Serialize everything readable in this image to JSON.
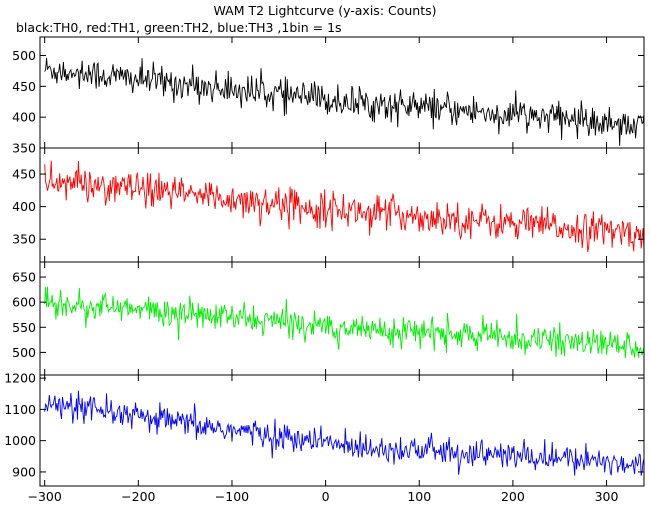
{
  "title": "WAM T2 Lightcurve (y-axis: Counts)",
  "subtitle": "black:TH0, red:TH1, green:TH2, blue:TH3 ,1bin = 1s",
  "chart_data": {
    "type": "line",
    "x_ticks": [
      -300,
      -200,
      -100,
      0,
      100,
      200,
      300
    ],
    "xlim": [
      -305,
      340
    ],
    "x_start": -300,
    "x_end": 340,
    "bin_seconds": 1,
    "panels": [
      {
        "name": "TH0",
        "color": "#000000",
        "ylim": [
          350,
          530
        ],
        "y_ticks": [
          350,
          400,
          450,
          500
        ],
        "trend_start": 478,
        "trend_mid": 425,
        "trend_end": 388,
        "noise_amplitude": 24
      },
      {
        "name": "TH1",
        "color": "#ff0000",
        "ylim": [
          315,
          490
        ],
        "y_ticks": [
          350,
          400,
          450
        ],
        "trend_start": 440,
        "trend_mid": 395,
        "trend_end": 358,
        "noise_amplitude": 24
      },
      {
        "name": "TH2",
        "color": "#00ee00",
        "ylim": [
          455,
          680
        ],
        "y_ticks": [
          500,
          550,
          600,
          650
        ],
        "trend_start": 600,
        "trend_mid": 550,
        "trend_end": 512,
        "noise_amplitude": 26
      },
      {
        "name": "TH3",
        "color": "#0000ff",
        "ylim": [
          855,
          1210
        ],
        "y_ticks": [
          900,
          1000,
          1100,
          1200
        ],
        "trend_start": 1115,
        "trend_mid": 985,
        "trend_end": 925,
        "noise_amplitude": 40
      }
    ]
  }
}
